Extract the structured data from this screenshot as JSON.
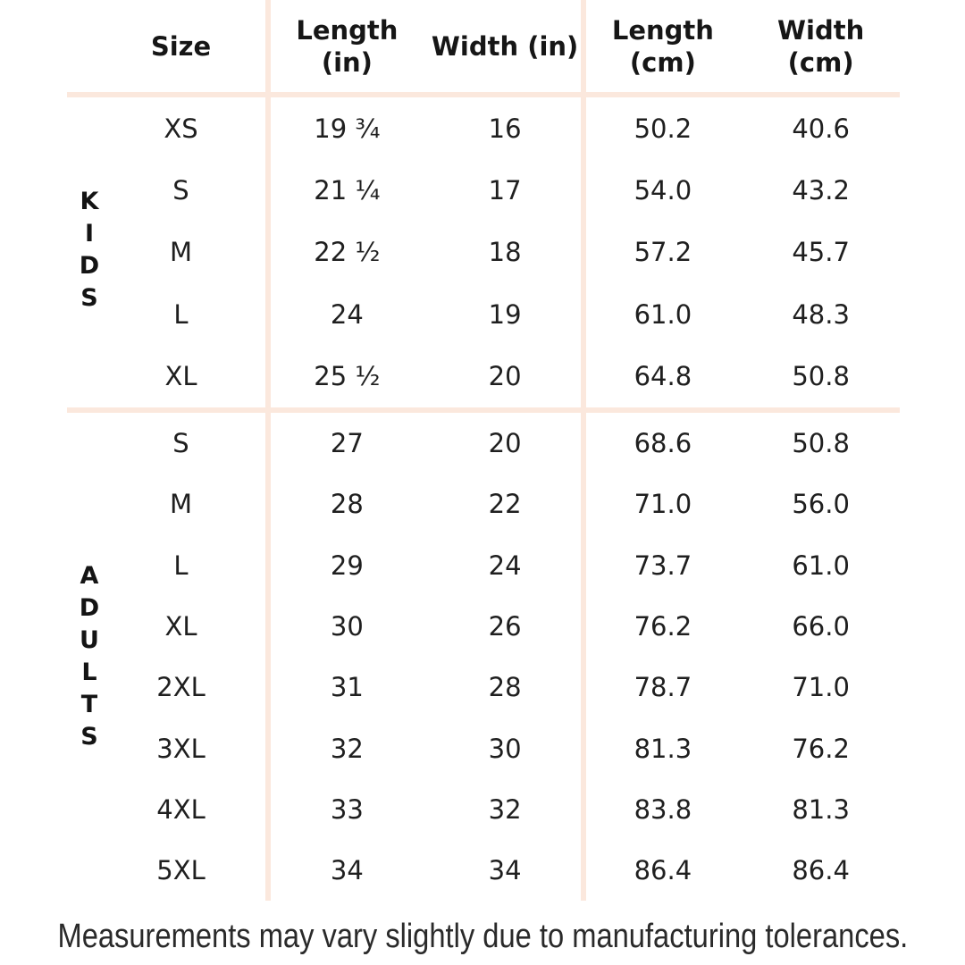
{
  "colors": {
    "background": "#ffffff",
    "divider_line": "#fbe8dd",
    "text": "#1d1d1d"
  },
  "chart_data": {
    "type": "table",
    "columns": [
      "Size",
      "Length (in)",
      "Width (in)",
      "Length (cm)",
      "Width (cm)"
    ],
    "column_display_lines": [
      [
        "Size"
      ],
      [
        "Length",
        "(in)"
      ],
      [
        "Width (in)"
      ],
      [
        "Length",
        "(cm)"
      ],
      [
        "Width",
        "(cm)"
      ]
    ],
    "row_groups": [
      {
        "group": "KIDS",
        "rows": [
          [
            "XS",
            "19 ¾",
            "16",
            "50.2",
            "40.6"
          ],
          [
            "S",
            "21 ¼",
            "17",
            "54.0",
            "43.2"
          ],
          [
            "M",
            "22 ½",
            "18",
            "57.2",
            "45.7"
          ],
          [
            "L",
            "24",
            "19",
            "61.0",
            "48.3"
          ],
          [
            "XL",
            "25 ½",
            "20",
            "64.8",
            "50.8"
          ]
        ]
      },
      {
        "group": "ADULTS",
        "rows": [
          [
            "S",
            "27",
            "20",
            "68.6",
            "50.8"
          ],
          [
            "M",
            "28",
            "22",
            "71.0",
            "56.0"
          ],
          [
            "L",
            "29",
            "24",
            "73.7",
            "61.0"
          ],
          [
            "XL",
            "30",
            "26",
            "76.2",
            "66.0"
          ],
          [
            "2XL",
            "31",
            "28",
            "78.7",
            "71.0"
          ],
          [
            "3XL",
            "32",
            "30",
            "81.3",
            "76.2"
          ],
          [
            "4XL",
            "33",
            "32",
            "83.8",
            "81.3"
          ],
          [
            "5XL",
            "34",
            "34",
            "86.4",
            "86.4"
          ]
        ]
      }
    ],
    "footnote": "Measurements may vary slightly due to manufacturing tolerances.",
    "layout": {
      "grid": "off",
      "group_label_orientation": "vertical-stacked"
    }
  }
}
